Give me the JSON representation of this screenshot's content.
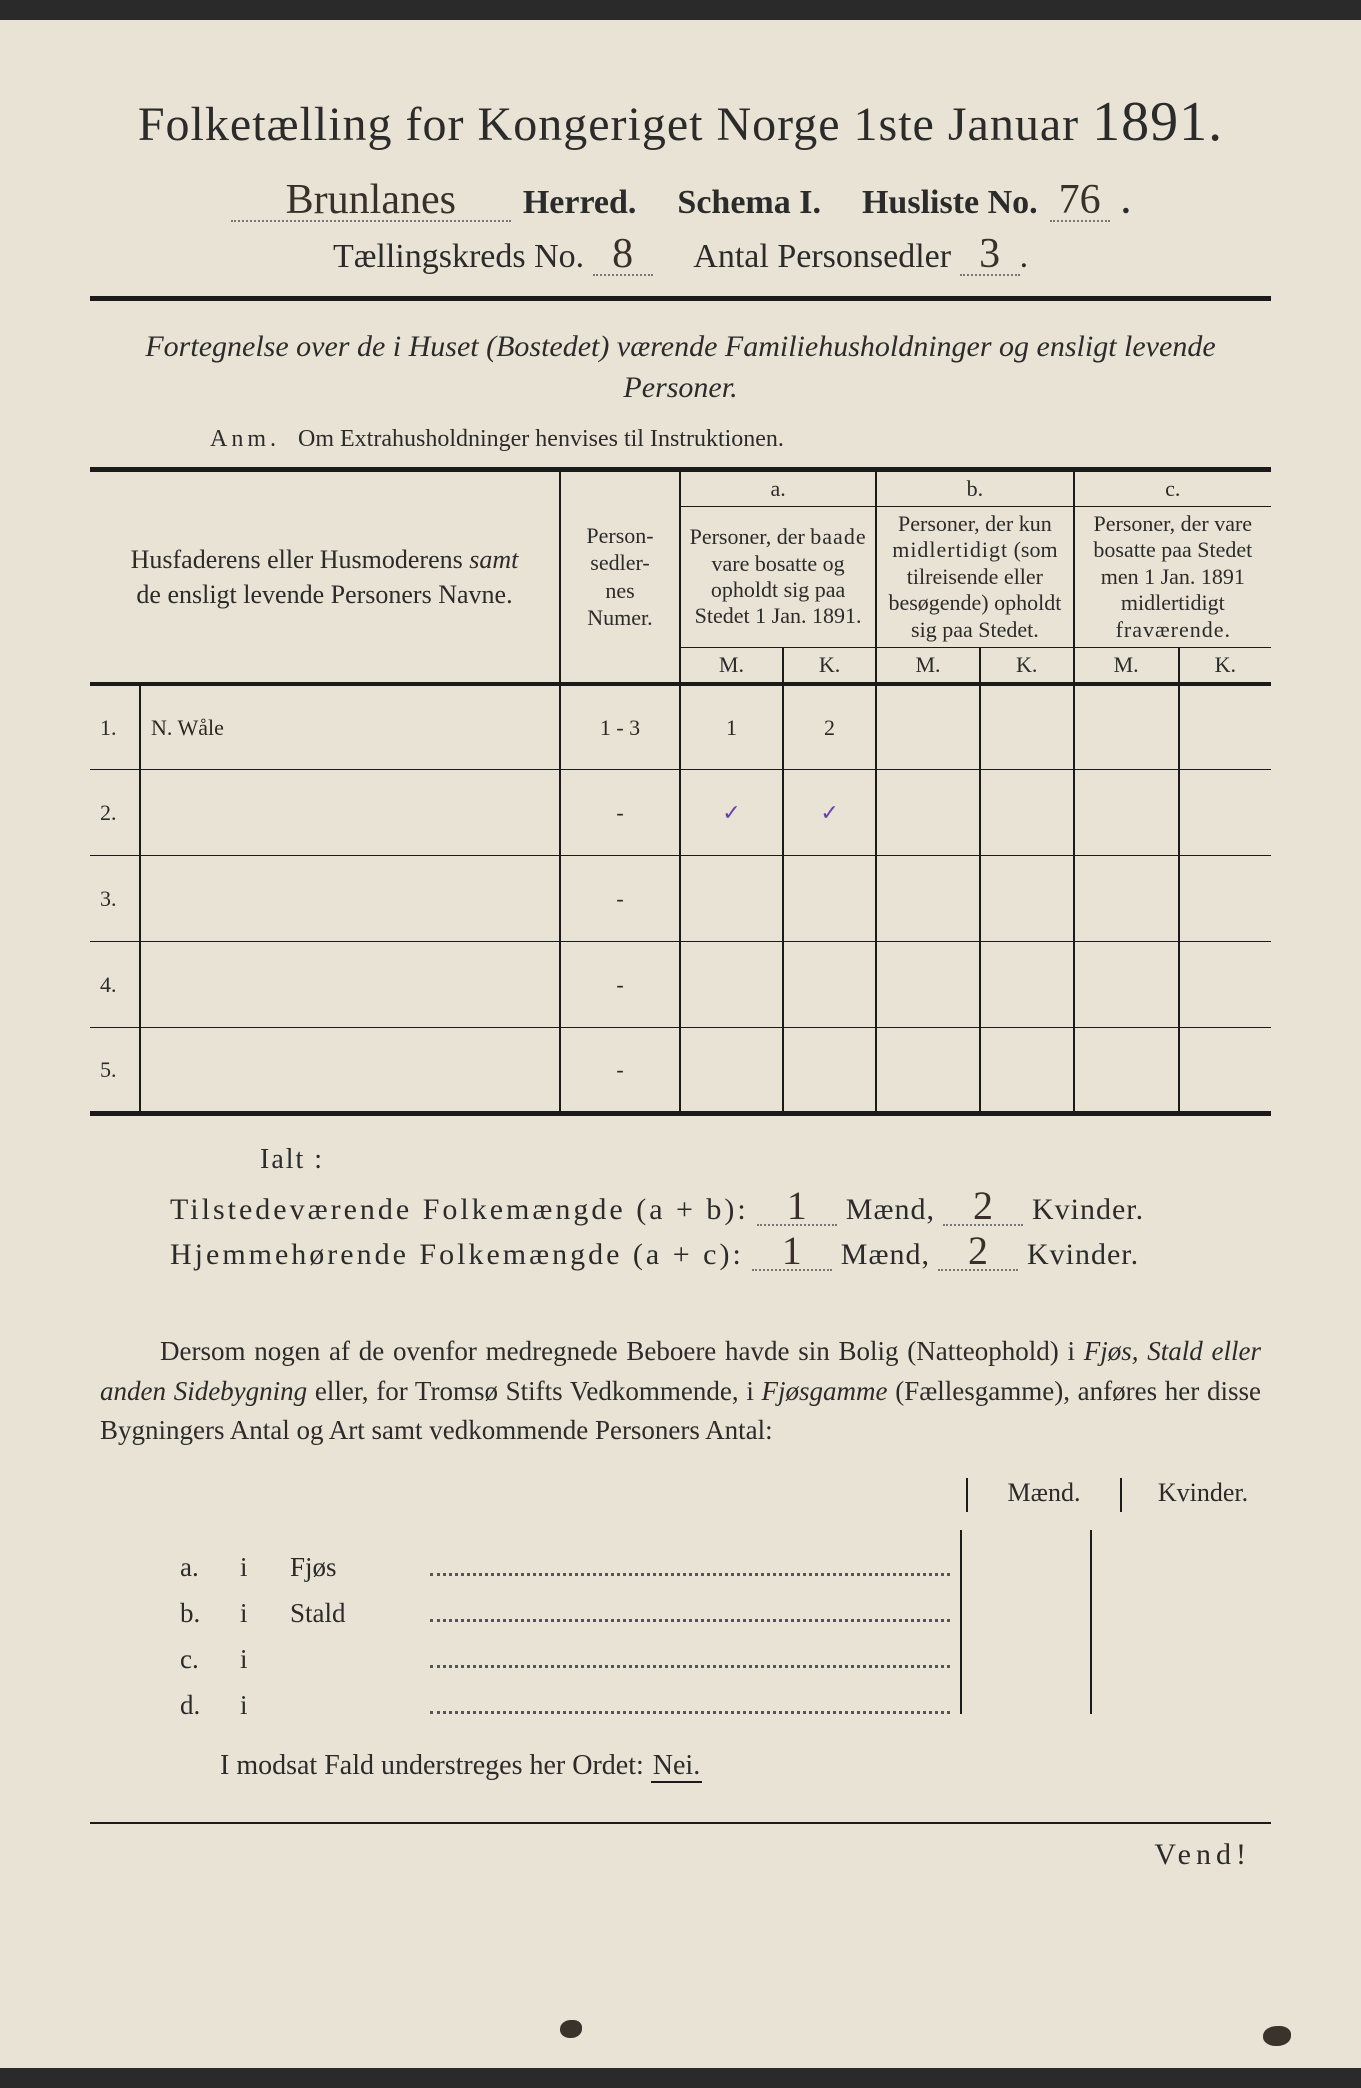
{
  "title": {
    "pre": "Folketælling for Kongeriget Norge 1ste Januar",
    "year": "1891."
  },
  "herred": {
    "value": "Brunlanes",
    "label": "Herred."
  },
  "schema": {
    "label": "Schema I.",
    "husliste_label": "Husliste No.",
    "husliste_no": "76"
  },
  "kreds": {
    "label": "Tællingskreds No.",
    "value": "8",
    "antal_label": "Antal Personsedler",
    "antal_value": "3"
  },
  "subtitle": "Fortegnelse over de i Huset (Bostedet) værende Familiehusholdninger og ensligt levende Personer.",
  "anm": {
    "label": "Anm.",
    "text": "Om Extrahusholdninger henvises til Instruktionen."
  },
  "table": {
    "col_names": "Husfaderens eller Husmoderens <i>samt</i> de ensligt levende Personers Navne.",
    "col_nums": "Person-\nsedler-\nnes\nNumer.",
    "letters": {
      "a": "a.",
      "b": "b.",
      "c": "c."
    },
    "col_a": "Personer, der baade vare bosatte og opholdt sig paa Stedet 1 Jan. 1891.",
    "col_b": "Personer, der kun midlertidigt (som tilreisende eller besøgende) opholdt sig paa Stedet.",
    "col_c": "Personer, der vare bosatte paa Stedet men 1 Jan. 1891 midlertidigt fraværende.",
    "M": "M.",
    "K": "K.",
    "rows": [
      {
        "n": "1.",
        "name": "N. Wåle",
        "num": "1 - 3",
        "aM": "1",
        "aK": "2",
        "bM": "",
        "bK": "",
        "cM": "",
        "cK": ""
      },
      {
        "n": "2.",
        "name": "",
        "num": "-",
        "aM": "✓",
        "aK": "✓",
        "bM": "",
        "bK": "",
        "cM": "",
        "cK": "",
        "purple": true
      },
      {
        "n": "3.",
        "name": "",
        "num": "-",
        "aM": "",
        "aK": "",
        "bM": "",
        "bK": "",
        "cM": "",
        "cK": ""
      },
      {
        "n": "4.",
        "name": "",
        "num": "-",
        "aM": "",
        "aK": "",
        "bM": "",
        "bK": "",
        "cM": "",
        "cK": ""
      },
      {
        "n": "5.",
        "name": "",
        "num": "-",
        "aM": "",
        "aK": "",
        "bM": "",
        "bK": "",
        "cM": "",
        "cK": ""
      }
    ]
  },
  "ialt": "Ialt :",
  "sum1": {
    "label": "Tilstedeværende Folkemængde (a + b):",
    "m": "1",
    "mlbl": "Mænd,",
    "k": "2",
    "klbl": "Kvinder."
  },
  "sum2": {
    "label": "Hjemmehørende Folkemængde (a + c):",
    "m": "1",
    "mlbl": "Mænd,",
    "k": "2",
    "klbl": "Kvinder."
  },
  "para": "Dersom nogen af de ovenfor medregnede Beboere havde sin Bolig (Natteophold) i <i>Fjøs, Stald eller anden Sidebygning</i> eller, for Tromsø Stifts Vedkommende, i <i>Fjøsgamme</i> (Fællesgamme), anføres her disse Bygningers Antal og Art samt vedkommende Personers Antal:",
  "mk_hdr": {
    "m": "Mænd.",
    "k": "Kvinder."
  },
  "sub": [
    {
      "l": "a.",
      "i": "i",
      "name": "Fjøs"
    },
    {
      "l": "b.",
      "i": "i",
      "name": "Stald"
    },
    {
      "l": "c.",
      "i": "i",
      "name": ""
    },
    {
      "l": "d.",
      "i": "i",
      "name": ""
    }
  ],
  "modsat": {
    "text": "I modsat Fald understreges her Ordet:",
    "nei": "Nei."
  },
  "vend": "Vend!",
  "colors": {
    "paper": "#e8e3d4",
    "ink": "#2b2b2b",
    "hand": "#3a2f2a",
    "purple": "#6b3fa8"
  }
}
